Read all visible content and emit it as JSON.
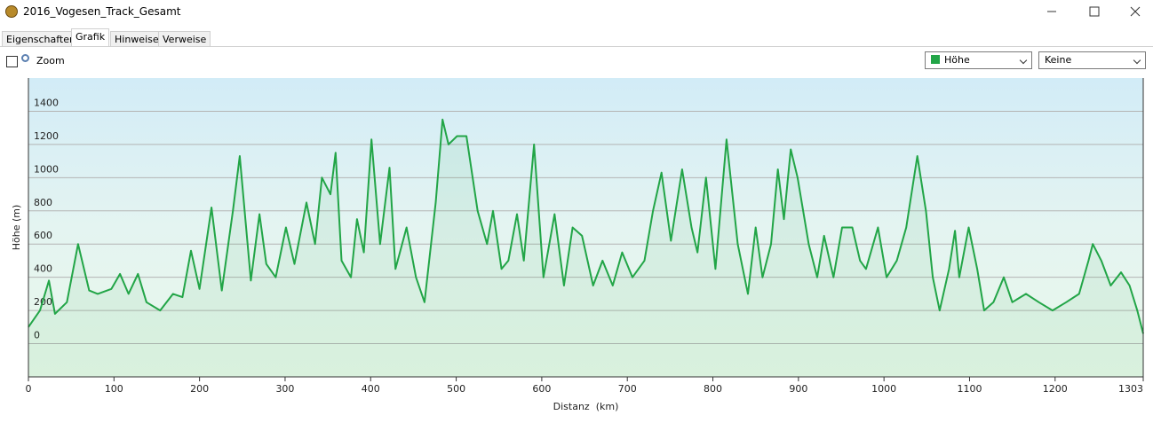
{
  "window": {
    "title": "2016_Vogesen_Track_Gesamt"
  },
  "tabs": [
    "Eigenschaften",
    "Grafik",
    "Hinweise",
    "Verweise"
  ],
  "toolbar": {
    "zoom_label": "Zoom",
    "dropdown_1": "Höhe",
    "dropdown_2": "Keine"
  },
  "chart_data": {
    "type": "line",
    "x_label": "Distanz  (km)",
    "y_label": "Höhe (m)",
    "color": "#22a547",
    "x": [
      0,
      13.5,
      24,
      31,
      45,
      58,
      71,
      81,
      97,
      107,
      117,
      128,
      138,
      154,
      169,
      180,
      190,
      200,
      214,
      226,
      239,
      247,
      260,
      270,
      278,
      289,
      301,
      311,
      325,
      335,
      343,
      353,
      359,
      366,
      377,
      384,
      392,
      401,
      411,
      422,
      429,
      442,
      453,
      463,
      476,
      484,
      491,
      501,
      512,
      525,
      536,
      543,
      553,
      561,
      571,
      579,
      591,
      602,
      615,
      626,
      636,
      647,
      660,
      671,
      683,
      694,
      706,
      720,
      730,
      740,
      751,
      764,
      775,
      782,
      792,
      803,
      816,
      829,
      841,
      850,
      858,
      868,
      876,
      883,
      891,
      899,
      912,
      922,
      930,
      941,
      951,
      963,
      972,
      979,
      993,
      1003,
      1015,
      1026,
      1039,
      1049,
      1057,
      1065,
      1076,
      1083,
      1088,
      1099,
      1109,
      1117,
      1128,
      1140,
      1150,
      1166,
      1181,
      1197,
      1213,
      1228,
      1239,
      1244,
      1254,
      1265,
      1277,
      1287,
      1296,
      1303
    ],
    "values": [
      100,
      200,
      380,
      180,
      250,
      600,
      320,
      300,
      330,
      420,
      300,
      420,
      250,
      200,
      300,
      280,
      560,
      330,
      820,
      320,
      800,
      1130,
      380,
      780,
      480,
      400,
      700,
      480,
      850,
      600,
      1000,
      900,
      1150,
      500,
      400,
      750,
      550,
      1230,
      600,
      1060,
      450,
      700,
      400,
      250,
      850,
      1350,
      1200,
      1250,
      1250,
      800,
      600,
      800,
      450,
      500,
      780,
      500,
      1200,
      400,
      780,
      350,
      700,
      650,
      350,
      500,
      350,
      550,
      400,
      500,
      800,
      1030,
      620,
      1050,
      700,
      550,
      1000,
      450,
      1230,
      600,
      300,
      700,
      400,
      600,
      1050,
      750,
      1170,
      1000,
      600,
      400,
      650,
      400,
      700,
      700,
      500,
      450,
      700,
      400,
      500,
      700,
      1130,
      800,
      400,
      200,
      450,
      680,
      400,
      700,
      450,
      200,
      250,
      400,
      250,
      300,
      250,
      200,
      250,
      300,
      500,
      600,
      500,
      350,
      430,
      350,
      200,
      60
    ],
    "xlim": [
      0,
      1303
    ],
    "ylim": [
      -200,
      1600
    ],
    "xticks": [
      0,
      100,
      200,
      300,
      400,
      500,
      600,
      700,
      800,
      900,
      1000,
      1100,
      1200,
      1303
    ],
    "yticks": [
      0,
      200,
      400,
      600,
      800,
      1000,
      1200,
      1400
    ],
    "grid": true
  }
}
